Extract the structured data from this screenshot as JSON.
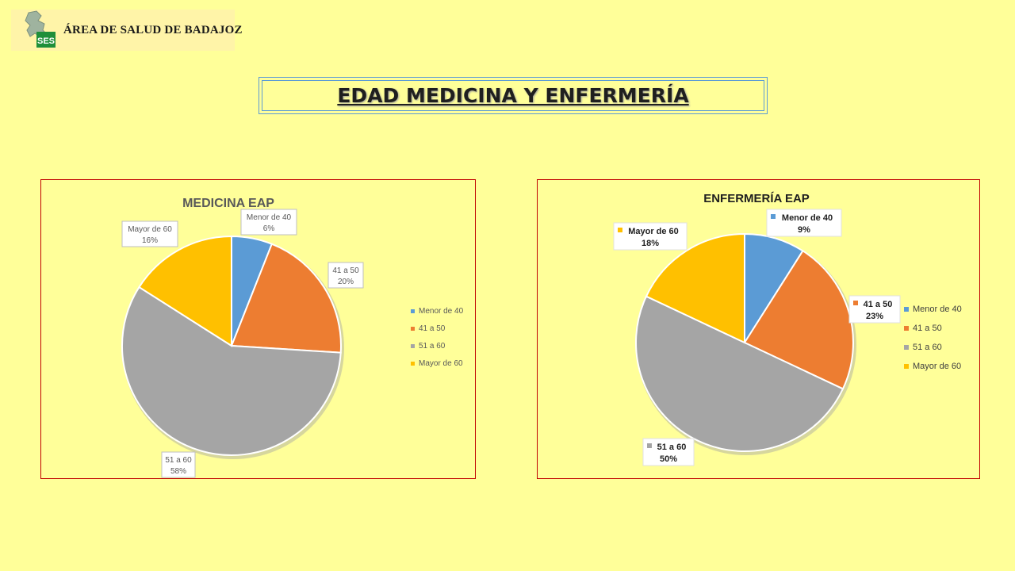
{
  "header": {
    "logo_text": "ÁREA DE SALUD DE BADAJOZ",
    "logo_badge": "SES"
  },
  "page_title": "EDAD MEDICINA Y ENFERMERÍA",
  "colors": {
    "background": "#FFFF99",
    "series": [
      "#5B9BD5",
      "#ED7D31",
      "#A5A5A5",
      "#FFC000"
    ],
    "panel_border": "#C00000",
    "title_border": "#5B9BD5"
  },
  "chart_data": [
    {
      "type": "pie",
      "title": "MEDICINA EAP",
      "categories": [
        "Menor de 40",
        "41 a 50",
        "51 a 60",
        "Mayor de 60"
      ],
      "values": [
        6,
        20,
        58,
        16
      ],
      "data_labels": [
        {
          "category": "Menor de 40",
          "percent": "6%"
        },
        {
          "category": "41 a 50",
          "percent": "20%"
        },
        {
          "category": "51 a 60",
          "percent": "58%"
        },
        {
          "category": "Mayor de 60",
          "percent": "16%"
        }
      ],
      "legend": [
        "Menor de 40",
        "41 a 50",
        "51 a 60",
        "Mayor de 60"
      ],
      "legend_position": "right"
    },
    {
      "type": "pie",
      "title": "ENFERMERÍA EAP",
      "categories": [
        "Menor de 40",
        "41 a 50",
        "51 a 60",
        "Mayor de 60"
      ],
      "values": [
        9,
        23,
        50,
        18
      ],
      "data_labels": [
        {
          "category": "Menor de 40",
          "percent": "9%"
        },
        {
          "category": "41 a 50",
          "percent": "23%"
        },
        {
          "category": "51 a 60",
          "percent": "50%"
        },
        {
          "category": "Mayor de 60",
          "percent": "18%"
        }
      ],
      "legend": [
        "Menor de 40",
        "41 a 50",
        "51 a 60",
        "Mayor de 60"
      ],
      "legend_position": "right"
    }
  ]
}
